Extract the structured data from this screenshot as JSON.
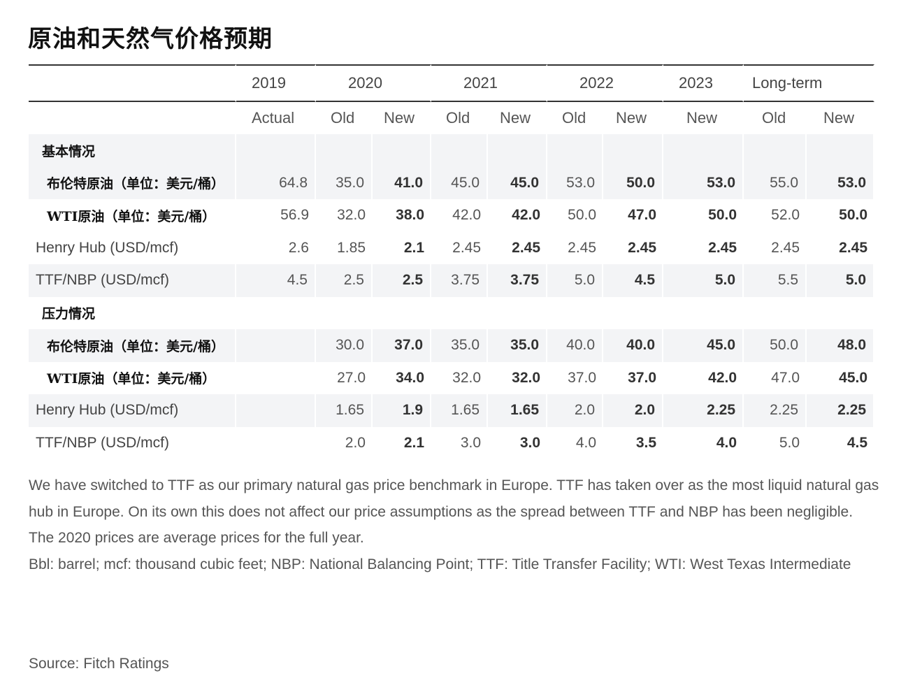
{
  "title": "原油和天然气价格预期",
  "years": [
    "2019",
    "2020",
    "2021",
    "2022",
    "2023",
    "Long-term"
  ],
  "subheaders": [
    "Actual",
    "Old",
    "New",
    "Old",
    "New",
    "Old",
    "New",
    "New",
    "Old",
    "New"
  ],
  "sections": [
    {
      "label": "基本情况",
      "rows": [
        {
          "name": "布伦特原油（单位：美元/桶）",
          "cn": true,
          "values": [
            "64.8",
            "35.0",
            "41.0",
            "45.0",
            "45.0",
            "53.0",
            "50.0",
            "53.0",
            "55.0",
            "53.0"
          ]
        },
        {
          "name": "WTI原油（单位：美元/桶）",
          "cn": true,
          "values": [
            "56.9",
            "32.0",
            "38.0",
            "42.0",
            "42.0",
            "50.0",
            "47.0",
            "50.0",
            "52.0",
            "50.0"
          ]
        },
        {
          "name": "Henry Hub (USD/mcf)",
          "cn": false,
          "values": [
            "2.6",
            "1.85",
            "2.1",
            "2.45",
            "2.45",
            "2.45",
            "2.45",
            "2.45",
            "2.45",
            "2.45"
          ]
        },
        {
          "name": "TTF/NBP (USD/mcf)",
          "cn": false,
          "values": [
            "4.5",
            "2.5",
            "2.5",
            "3.75",
            "3.75",
            "5.0",
            "4.5",
            "5.0",
            "5.5",
            "5.0"
          ]
        }
      ]
    },
    {
      "label": "压力情况",
      "rows": [
        {
          "name": "布伦特原油（单位：美元/桶）",
          "cn": true,
          "values": [
            "",
            "30.0",
            "37.0",
            "35.0",
            "35.0",
            "40.0",
            "40.0",
            "45.0",
            "50.0",
            "48.0"
          ]
        },
        {
          "name": "WTI原油（单位：美元/桶）",
          "cn": true,
          "values": [
            "",
            "27.0",
            "34.0",
            "32.0",
            "32.0",
            "37.0",
            "37.0",
            "42.0",
            "47.0",
            "45.0"
          ]
        },
        {
          "name": "Henry Hub (USD/mcf)",
          "cn": false,
          "values": [
            "",
            "1.65",
            "1.9",
            "1.65",
            "1.65",
            "2.0",
            "2.0",
            "2.25",
            "2.25",
            "2.25"
          ]
        },
        {
          "name": "TTF/NBP (USD/mcf)",
          "cn": false,
          "values": [
            "",
            "2.0",
            "2.1",
            "3.0",
            "3.0",
            "4.0",
            "3.5",
            "4.0",
            "5.0",
            "4.5"
          ]
        }
      ]
    }
  ],
  "notes": [
    "We have  switched to TTF as our primary natural gas price benchmark in Europe. TTF has taken over as the most liquid natural gas hub in Europe. On its own this does not affect our price assumptions as the spread between TTF and NBP has been negligible.",
    "The 2020 prices are average prices for the full year.",
    "Bbl: barrel; mcf: thousand cubic feet; NBP: National Balancing Point; TTF: Title Transfer Facility; WTI: West Texas Intermediate"
  ],
  "source": "Source: Fitch Ratings"
}
